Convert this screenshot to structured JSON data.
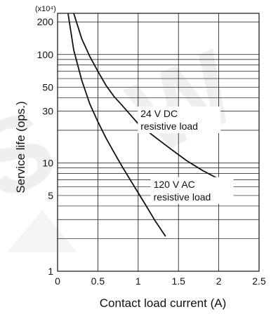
{
  "chart_data": {
    "type": "line",
    "xlabel": "Contact load current (A)",
    "ylabel": "Service life (ops.)",
    "y_unit": "(x10⁴)",
    "xlim": [
      0,
      2.5
    ],
    "ylim": [
      1,
      240
    ],
    "yscale": "log",
    "grid": true,
    "x_ticks": [
      "0",
      "0.5",
      "1",
      "1.5",
      "2",
      "2.5"
    ],
    "y_ticks": [
      "1",
      "5",
      "10",
      "30",
      "50",
      "100",
      "200"
    ],
    "series": [
      {
        "name": "24 V DC resistive load",
        "color": "#111111",
        "x": [
          0.2,
          0.3,
          0.4,
          0.5,
          0.6,
          0.7,
          0.8,
          0.9,
          1.0,
          1.2,
          1.4,
          1.6,
          1.8,
          2.0
        ],
        "y": [
          240,
          140,
          96,
          70,
          52,
          41,
          34,
          28,
          23,
          17.5,
          13.5,
          10.5,
          8.5,
          7.1
        ]
      },
      {
        "name": "120 V AC resistive load",
        "color": "#111111",
        "x": [
          0.13,
          0.2,
          0.3,
          0.4,
          0.5,
          0.6,
          0.7,
          0.8,
          0.9,
          1.0,
          1.1,
          1.2,
          1.34
        ],
        "y": [
          240,
          110,
          58,
          35,
          24,
          17,
          12.5,
          9.3,
          7.0,
          5.3,
          4.0,
          3.0,
          2.1
        ]
      }
    ],
    "annotations": [
      {
        "series": 0,
        "lines": [
          "24 V DC",
          "resistive load"
        ]
      },
      {
        "series": 1,
        "lines": [
          "120 V AC",
          "resistive load"
        ]
      }
    ]
  }
}
